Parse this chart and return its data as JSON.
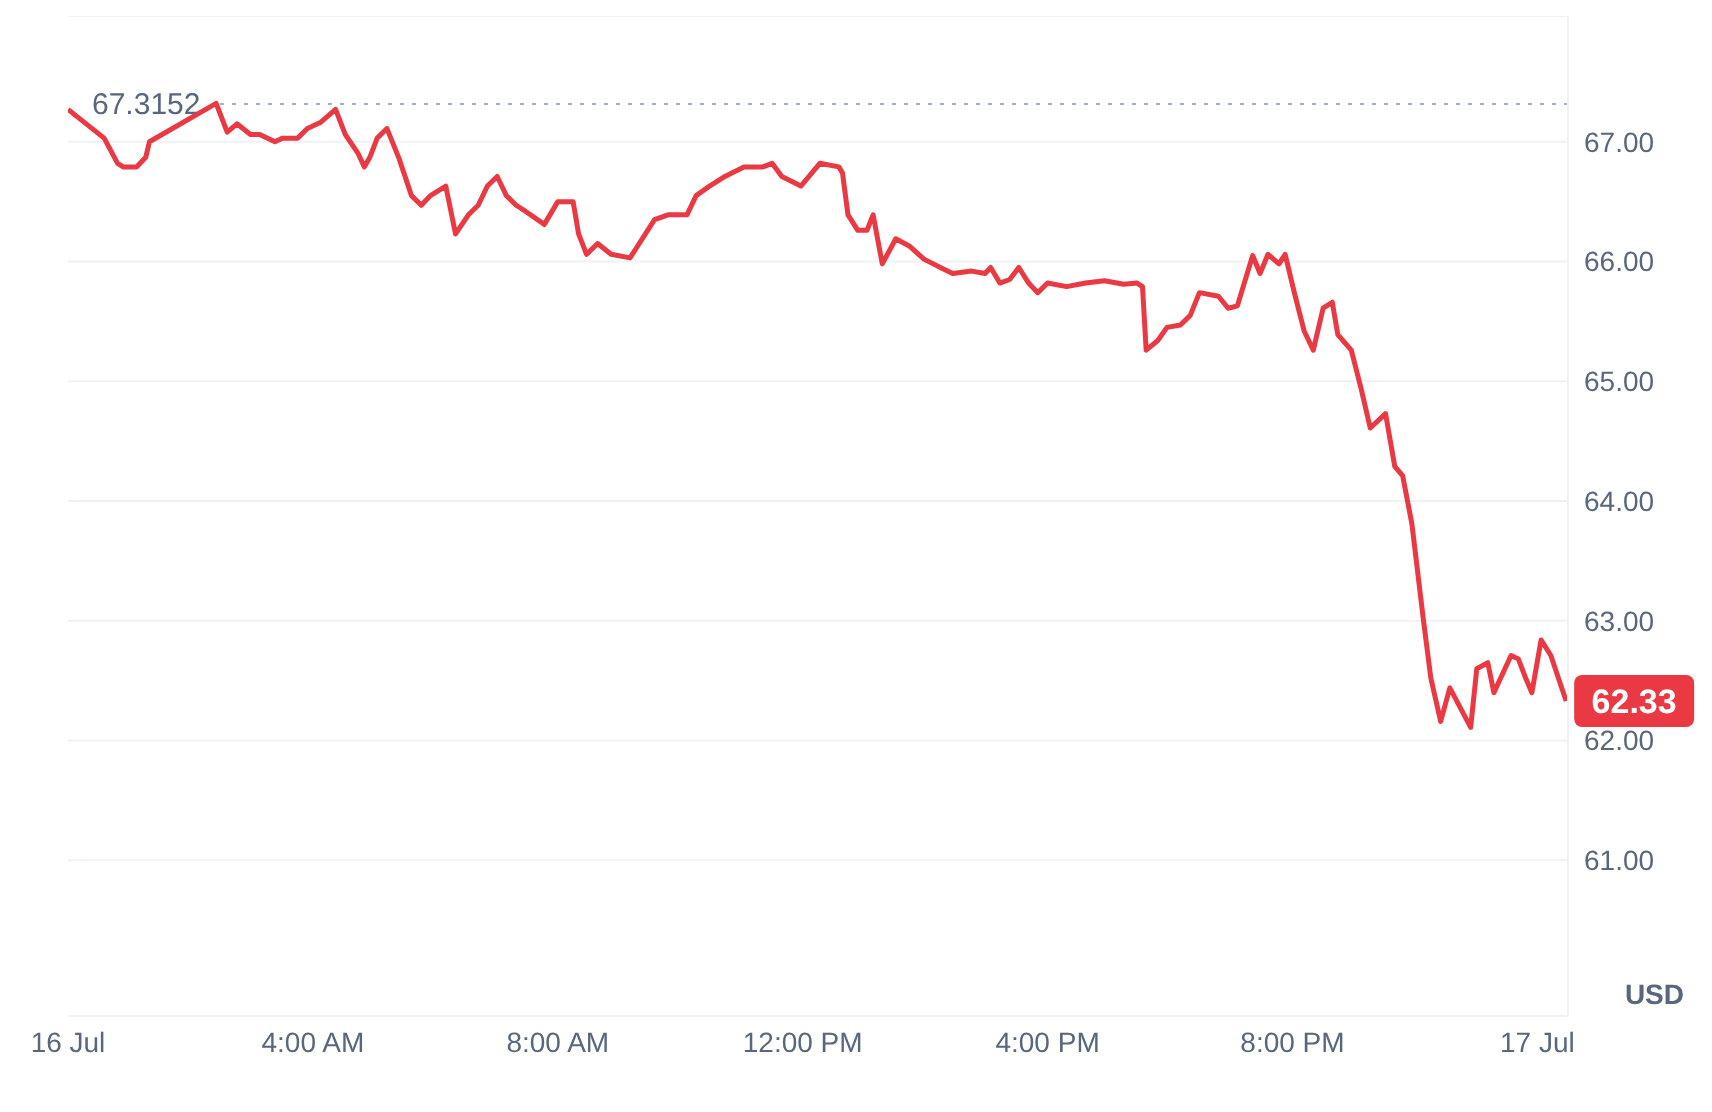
{
  "chart_data": {
    "type": "line",
    "ylabel": "USD",
    "xlim": [
      0,
      24.5
    ],
    "ylim": [
      59.7,
      68.05
    ],
    "xticks": [
      {
        "value": 0,
        "label": "16 Jul"
      },
      {
        "value": 4,
        "label": "4:00 AM"
      },
      {
        "value": 8,
        "label": "8:00 AM"
      },
      {
        "value": 12,
        "label": "12:00 PM"
      },
      {
        "value": 16,
        "label": "4:00 PM"
      },
      {
        "value": 20,
        "label": "8:00 PM"
      },
      {
        "value": 24,
        "label": "17 Jul"
      }
    ],
    "yticks": [
      {
        "value": 61,
        "label": "61.00"
      },
      {
        "value": 62,
        "label": "62.00"
      },
      {
        "value": 63,
        "label": "63.00"
      },
      {
        "value": 64,
        "label": "64.00"
      },
      {
        "value": 65,
        "label": "65.00"
      },
      {
        "value": 66,
        "label": "66.00"
      },
      {
        "value": 67,
        "label": "67.00"
      }
    ],
    "grid": "y",
    "x": [
      0,
      0.59,
      0.81,
      0.9,
      1.12,
      1.27,
      1.33,
      2.42,
      2.6,
      2.76,
      2.98,
      3.13,
      3.38,
      3.5,
      3.75,
      3.91,
      4.12,
      4.37,
      4.53,
      4.74,
      4.84,
      4.93,
      5.05,
      5.21,
      5.4,
      5.61,
      5.77,
      5.92,
      6.17,
      6.33,
      6.54,
      6.7,
      6.85,
      7.01,
      7.16,
      7.32,
      7.47,
      7.78,
      8.0,
      8.25,
      8.34,
      8.47,
      8.65,
      8.87,
      9.18,
      9.58,
      9.8,
      10.11,
      10.26,
      10.48,
      10.73,
      11.04,
      11.35,
      11.5,
      11.66,
      11.97,
      12.28,
      12.59,
      12.65,
      12.74,
      12.9,
      13.05,
      13.15,
      13.3,
      13.52,
      13.74,
      13.98,
      14.29,
      14.45,
      14.76,
      14.98,
      15.07,
      15.22,
      15.38,
      15.53,
      15.69,
      15.84,
      16.0,
      16.31,
      16.62,
      16.93,
      17.24,
      17.46,
      17.55,
      17.61,
      17.8,
      17.95,
      18.17,
      18.33,
      18.48,
      18.79,
      18.95,
      19.1,
      19.26,
      19.35,
      19.47,
      19.6,
      19.78,
      19.88,
      20.03,
      20.19,
      20.34,
      20.5,
      20.65,
      20.74,
      20.96,
      21.12,
      21.27,
      21.52,
      21.67,
      21.8,
      21.95,
      22.14,
      22.26,
      22.42,
      22.57,
      22.91,
      23.01,
      23.19,
      23.29,
      23.57,
      23.69,
      23.81,
      23.91,
      24.06,
      24.22,
      24.37,
      24.47
    ],
    "series": [
      {
        "color": "#ea3943",
        "values": [
          67.27,
          67.03,
          66.82,
          66.79,
          66.79,
          66.87,
          67.0,
          67.32,
          67.08,
          67.15,
          67.06,
          67.06,
          67.0,
          67.03,
          67.03,
          67.11,
          67.16,
          67.27,
          67.06,
          66.9,
          66.79,
          66.87,
          67.03,
          67.11,
          66.87,
          66.55,
          66.47,
          66.55,
          66.63,
          66.23,
          66.39,
          66.47,
          66.63,
          66.71,
          66.55,
          66.47,
          66.42,
          66.31,
          66.5,
          66.5,
          66.23,
          66.06,
          66.15,
          66.06,
          66.03,
          66.35,
          66.39,
          66.39,
          66.55,
          66.63,
          66.71,
          66.79,
          66.79,
          66.82,
          66.71,
          66.63,
          66.82,
          66.79,
          66.74,
          66.39,
          66.26,
          66.26,
          66.39,
          65.98,
          66.19,
          66.13,
          66.02,
          65.94,
          65.9,
          65.92,
          65.9,
          65.95,
          65.82,
          65.85,
          65.95,
          65.82,
          65.74,
          65.82,
          65.79,
          65.82,
          65.84,
          65.81,
          65.82,
          65.79,
          65.26,
          65.34,
          65.45,
          65.47,
          65.55,
          65.74,
          65.71,
          65.61,
          65.63,
          65.9,
          66.05,
          65.9,
          66.06,
          65.98,
          66.06,
          65.74,
          65.42,
          65.26,
          65.61,
          65.66,
          65.39,
          65.26,
          64.94,
          64.61,
          64.73,
          64.29,
          64.21,
          63.81,
          63.0,
          62.52,
          62.16,
          62.44,
          62.11,
          62.6,
          62.65,
          62.4,
          62.71,
          62.68,
          62.52,
          62.4,
          62.84,
          62.71,
          62.48,
          62.33
        ]
      }
    ],
    "ref_lines": [
      {
        "axis": "y",
        "value": 67.3152,
        "label": "67.3152",
        "color": "#a6b0c3",
        "line_style": "dotted"
      }
    ],
    "annotations": [
      {
        "text": "62.33",
        "x": 24.47,
        "y": 62.33
      }
    ]
  }
}
